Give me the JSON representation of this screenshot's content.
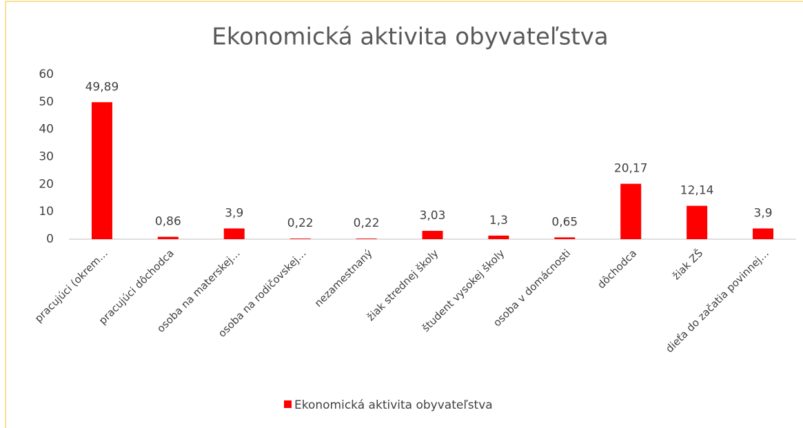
{
  "chart_data": {
    "type": "bar",
    "title": "Ekonomická aktivita obyvateľstva",
    "categories": [
      "pracujúci (okrem…",
      "pracujúci dôchodca",
      "osoba na materskej…",
      "osoba na rodičovskej…",
      "nezamestnaný",
      "žiak strednej školy",
      "študent vysokej školy",
      "osoba v domácnosti",
      "dôchodca",
      "žiak ZŠ",
      "dieťa do začatia povinnej…"
    ],
    "series": [
      {
        "name": "Ekonomická aktivita obyvateľstva",
        "color": "#ff0000",
        "values": [
          49.89,
          0.86,
          3.9,
          0.22,
          0.22,
          3.03,
          1.3,
          0.65,
          20.17,
          12.14,
          3.9
        ],
        "value_labels": [
          "49,89",
          "0,86",
          "3,9",
          "0,22",
          "0,22",
          "3,03",
          "1,3",
          "0,65",
          "20,17",
          "12,14",
          "3,9"
        ]
      }
    ],
    "ylim": [
      0,
      60
    ],
    "yticks": [
      0,
      10,
      20,
      30,
      40,
      50,
      60
    ],
    "grid": false,
    "legend": "bottom"
  }
}
